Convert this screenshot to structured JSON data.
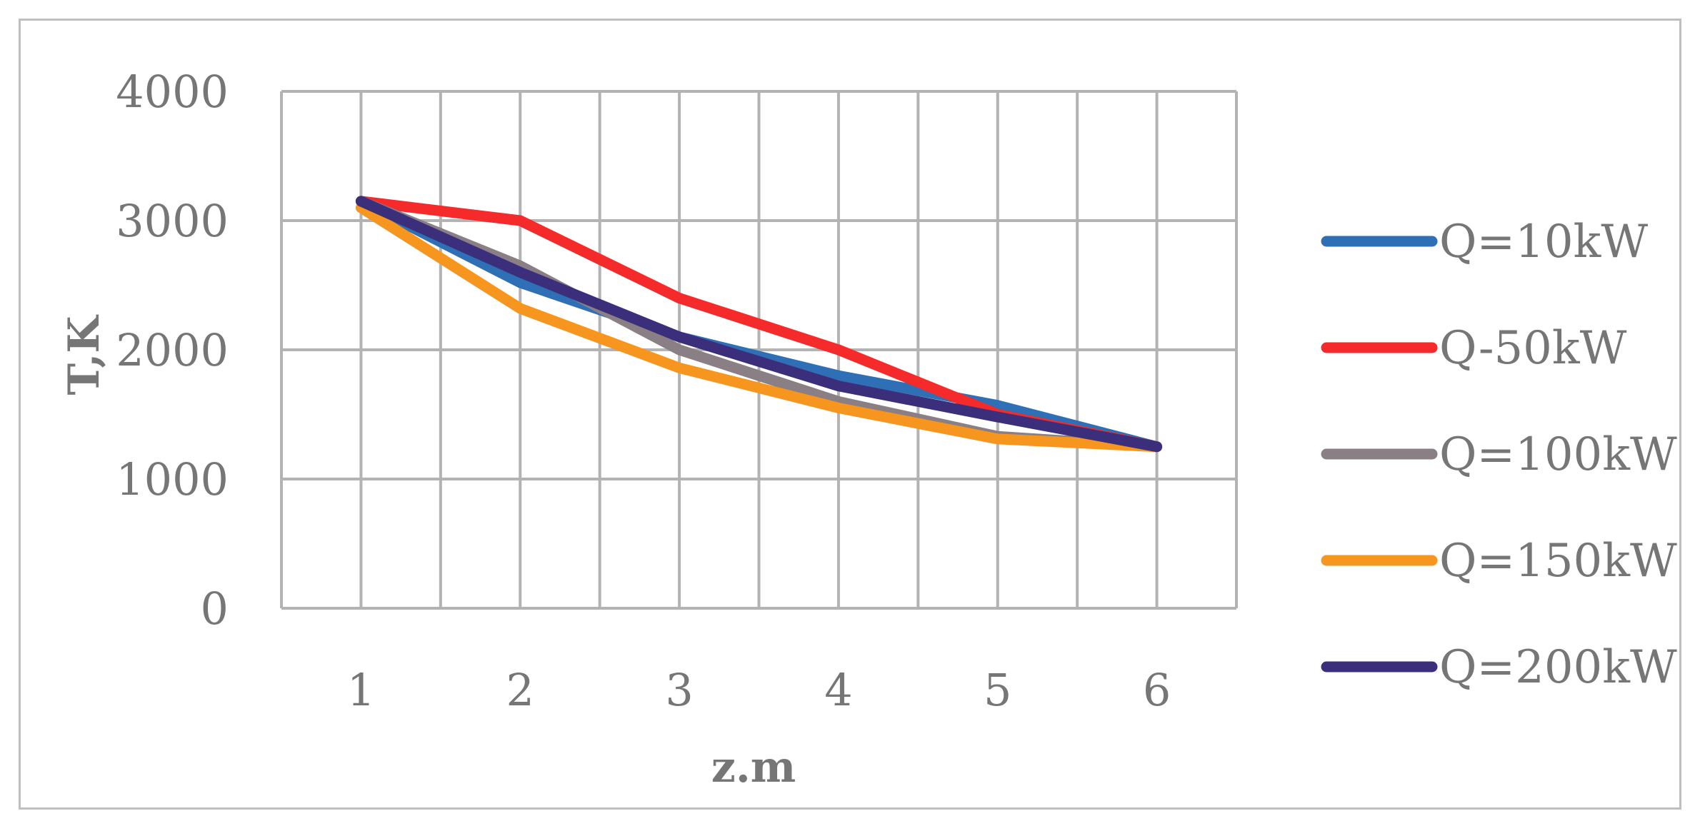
{
  "chart_data": {
    "type": "line",
    "title": "",
    "xlabel": "z.m",
    "ylabel": "T,K",
    "x": [
      1,
      2,
      3,
      4,
      5,
      6
    ],
    "ylim": [
      0,
      4000
    ],
    "yticks": [
      0,
      1000,
      2000,
      3000,
      4000
    ],
    "grid": true,
    "legend_position": "right",
    "series": [
      {
        "name": "Q=10kW",
        "color": "#2e6fb5",
        "values": [
          3150,
          2520,
          2100,
          1800,
          1570,
          1250
        ]
      },
      {
        "name": "Q-50kW",
        "color": "#f52a2a",
        "values": [
          3150,
          3000,
          2400,
          2000,
          1500,
          1250
        ]
      },
      {
        "name": "Q=100kW",
        "color": "#8a7f84",
        "values": [
          3150,
          2650,
          2000,
          1600,
          1330,
          1250
        ]
      },
      {
        "name": "Q=150kW",
        "color": "#f7961e",
        "values": [
          3100,
          2320,
          1860,
          1550,
          1310,
          1250
        ]
      },
      {
        "name": "Q=200kW",
        "color": "#3b2f7c",
        "values": [
          3150,
          2600,
          2100,
          1720,
          1480,
          1250
        ]
      }
    ]
  }
}
